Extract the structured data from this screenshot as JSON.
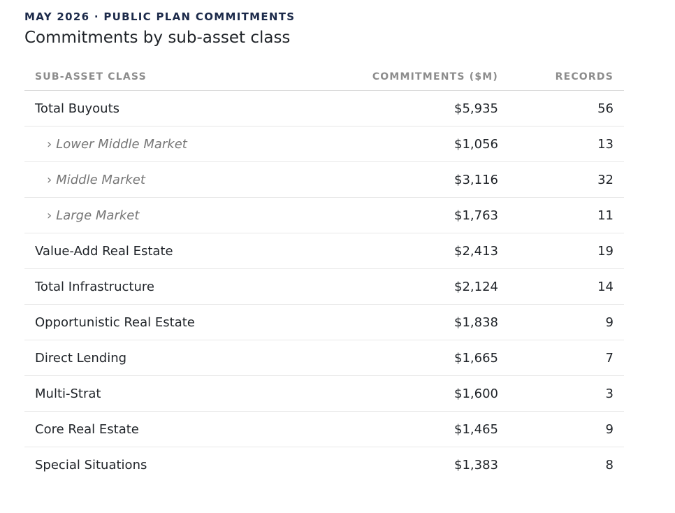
{
  "header": {
    "eyebrow": "MAY 2026 · PUBLIC PLAN COMMITMENTS",
    "title": "Commitments by sub-asset class"
  },
  "chart_data": {
    "type": "table",
    "columns": [
      "SUB-ASSET CLASS",
      "COMMITMENTS ($M)",
      "RECORDS"
    ],
    "rows": [
      {
        "label": "Total Buyouts",
        "commitments": "$5,935",
        "records": "56",
        "is_sub": false
      },
      {
        "label": "Lower Middle Market",
        "commitments": "$1,056",
        "records": "13",
        "is_sub": true
      },
      {
        "label": "Middle Market",
        "commitments": "$3,116",
        "records": "32",
        "is_sub": true
      },
      {
        "label": "Large Market",
        "commitments": "$1,763",
        "records": "11",
        "is_sub": true
      },
      {
        "label": "Value-Add Real Estate",
        "commitments": "$2,413",
        "records": "19",
        "is_sub": false
      },
      {
        "label": "Total Infrastructure",
        "commitments": "$2,124",
        "records": "14",
        "is_sub": false
      },
      {
        "label": "Opportunistic Real Estate",
        "commitments": "$1,838",
        "records": "9",
        "is_sub": false
      },
      {
        "label": "Direct Lending",
        "commitments": "$1,665",
        "records": "7",
        "is_sub": false
      },
      {
        "label": "Multi-Strat",
        "commitments": "$1,600",
        "records": "3",
        "is_sub": false
      },
      {
        "label": "Core Real Estate",
        "commitments": "$1,465",
        "records": "9",
        "is_sub": false
      },
      {
        "label": "Special Situations",
        "commitments": "$1,383",
        "records": "8",
        "is_sub": false
      }
    ],
    "sub_row_marker": "›"
  }
}
